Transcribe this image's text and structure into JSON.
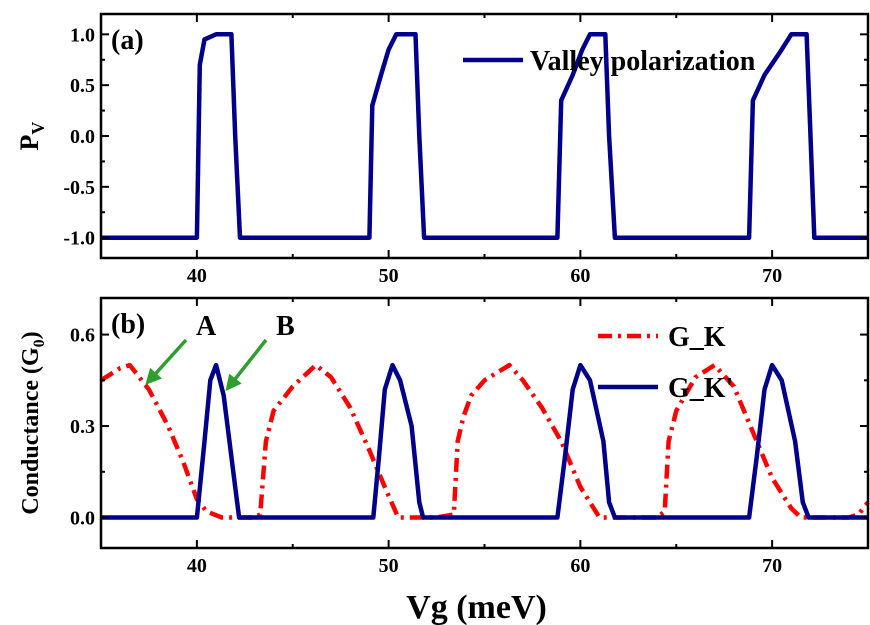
{
  "chart_data": [
    {
      "type": "line",
      "panel_label": "(a)",
      "xlabel": "",
      "ylabel": "P",
      "ylabel_sub": "V",
      "xlim": [
        35,
        75
      ],
      "ylim": [
        -1.2,
        1.2
      ],
      "x_ticks": [
        40,
        50,
        60,
        70
      ],
      "x_tick_labels": [
        "40",
        "50",
        "60",
        "70"
      ],
      "y_ticks": [
        -1.0,
        -0.5,
        0.0,
        0.5,
        1.0
      ],
      "y_tick_labels": [
        "-1.0",
        "-0.5",
        "0.0",
        "0.5",
        "1.0"
      ],
      "legend_position": "top-right",
      "series": [
        {
          "name": "Valley polarization",
          "color": "#00008b",
          "style": "solid",
          "x": [
            35,
            40.0,
            40.15,
            40.4,
            41.0,
            41.8,
            42.0,
            42.25,
            49.0,
            49.15,
            49.6,
            50.0,
            50.4,
            51.4,
            51.6,
            51.85,
            58.8,
            59.0,
            59.6,
            60.1,
            60.5,
            61.3,
            61.5,
            61.8,
            68.8,
            69.0,
            69.6,
            70.5,
            71.0,
            71.8,
            72.0,
            72.2,
            75
          ],
          "y": [
            -1.0,
            -1.0,
            0.7,
            0.95,
            1.0,
            1.0,
            0.0,
            -1.0,
            -1.0,
            0.3,
            0.6,
            0.85,
            1.0,
            1.0,
            0.0,
            -1.0,
            -1.0,
            0.35,
            0.6,
            0.85,
            1.0,
            1.0,
            0.0,
            -1.0,
            -1.0,
            0.35,
            0.6,
            0.85,
            1.0,
            1.0,
            0.0,
            -1.0,
            -1.0
          ]
        }
      ]
    },
    {
      "type": "line",
      "panel_label": "(b)",
      "xlabel": "Vg (meV)",
      "ylabel": "Conductance (G",
      "ylabel_sub": "0",
      "ylabel_end": ")",
      "xlim": [
        35,
        75
      ],
      "ylim": [
        -0.1,
        0.72
      ],
      "x_ticks": [
        40,
        50,
        60,
        70
      ],
      "x_tick_labels": [
        "40",
        "50",
        "60",
        "70"
      ],
      "y_ticks": [
        0.0,
        0.3,
        0.6
      ],
      "y_tick_labels": [
        "0.0",
        "0.3",
        "0.6"
      ],
      "legend_position": "top-right",
      "annotations": [
        {
          "text": "A",
          "x": 37.0,
          "y": 0.43
        },
        {
          "text": "B",
          "x": 41.0,
          "y": 0.37
        }
      ],
      "series": [
        {
          "name": "G_K",
          "color": "#ff0000",
          "style": "dashdot",
          "x": [
            35,
            36.0,
            36.5,
            37.5,
            38.5,
            39.3,
            40.0,
            40.5,
            41.3,
            42.0,
            43.0,
            43.3,
            43.6,
            44.0,
            45.0,
            46.2,
            47.0,
            48.0,
            49.0,
            49.8,
            50.5,
            51.5,
            52.5,
            53.4,
            53.6,
            53.9,
            54.3,
            55.0,
            56.3,
            57.0,
            58.0,
            59.0,
            60.0,
            61.0,
            62.0,
            63.0,
            64.0,
            64.4,
            64.6,
            65.0,
            66.0,
            67.0,
            68.0,
            69.0,
            70.0,
            71.0,
            71.5,
            72.0,
            74.0,
            74.5,
            75
          ],
          "y": [
            0.45,
            0.49,
            0.5,
            0.42,
            0.3,
            0.18,
            0.06,
            0.02,
            0.0,
            0.0,
            0.0,
            0.01,
            0.25,
            0.35,
            0.43,
            0.5,
            0.46,
            0.36,
            0.22,
            0.1,
            0.0,
            0.0,
            0.0,
            0.01,
            0.25,
            0.33,
            0.4,
            0.45,
            0.5,
            0.45,
            0.36,
            0.25,
            0.1,
            0.0,
            0.0,
            0.0,
            0.0,
            0.02,
            0.25,
            0.35,
            0.46,
            0.5,
            0.43,
            0.28,
            0.13,
            0.03,
            0.0,
            0.0,
            0.0,
            0.01,
            0.05
          ]
        },
        {
          "name": "G_K'",
          "color": "#00008b",
          "style": "solid",
          "x": [
            35,
            40.0,
            40.4,
            40.7,
            41.0,
            41.4,
            42.0,
            42.2,
            49.2,
            49.5,
            49.8,
            50.2,
            50.6,
            51.2,
            51.6,
            51.8,
            58.8,
            59.2,
            59.6,
            60.0,
            60.5,
            61.2,
            61.5,
            61.8,
            68.8,
            69.2,
            69.6,
            70.0,
            70.5,
            71.2,
            71.6,
            71.9,
            75
          ],
          "y": [
            0.0,
            0.0,
            0.25,
            0.45,
            0.5,
            0.4,
            0.1,
            0.0,
            0.0,
            0.2,
            0.42,
            0.5,
            0.45,
            0.3,
            0.05,
            0.0,
            0.0,
            0.2,
            0.42,
            0.5,
            0.45,
            0.25,
            0.05,
            0.0,
            0.0,
            0.2,
            0.42,
            0.5,
            0.45,
            0.25,
            0.05,
            0.0,
            0.0
          ]
        }
      ]
    }
  ]
}
